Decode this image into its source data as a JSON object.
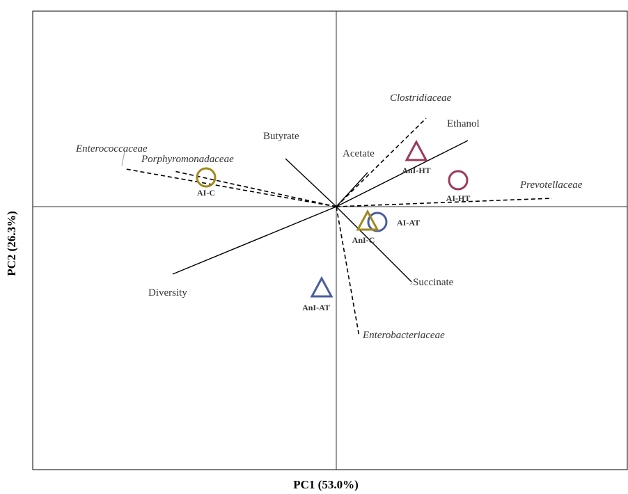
{
  "chart_data": {
    "type": "scatter",
    "subtype": "pca-biplot",
    "xlabel": "PC1 (53.0%)",
    "ylabel": "PC2 (26.3%)",
    "xlim": [
      -1.0,
      1.0
    ],
    "ylim": [
      -1.0,
      1.0
    ],
    "grid": false,
    "legend": "none",
    "samples": [
      {
        "label": "AI-C",
        "shape": "circle",
        "color": "#a08a1e",
        "x": -0.935,
        "y": 0.21
      },
      {
        "label": "AI-HT",
        "shape": "circle",
        "color": "#9a3a5e",
        "x": 0.875,
        "y": 0.19
      },
      {
        "label": "AI-AT",
        "shape": "circle",
        "color": "#4a5e9e",
        "x": 0.295,
        "y": -0.11
      },
      {
        "label": "AnI-C",
        "shape": "triangle",
        "color": "#a08a1e",
        "x": 0.225,
        "y": -0.11
      },
      {
        "label": "AnI-HT",
        "shape": "triangle",
        "color": "#9a3a5e",
        "x": 0.575,
        "y": 0.39
      },
      {
        "label": "AnI-AT",
        "shape": "triangle",
        "color": "#4a5e9e",
        "x": -0.105,
        "y": -0.59
      }
    ],
    "vectors": [
      {
        "label": "Ethanol",
        "style": "solid",
        "x": 0.945,
        "y": 0.475
      },
      {
        "label": "Butyrate",
        "style": "solid",
        "x": -0.365,
        "y": 0.345
      },
      {
        "label": "Acetate",
        "style": "solid",
        "x": 0.225,
        "y": 0.245
      },
      {
        "label": "Succinate",
        "style": "solid",
        "x": 0.54,
        "y": -0.54
      },
      {
        "label": "Diversity",
        "style": "solid",
        "x": -1.175,
        "y": -0.485
      },
      {
        "label": "Clostridiaceae",
        "style": "dashed",
        "x": 0.645,
        "y": 0.635
      },
      {
        "label": "Enterococcaceae",
        "style": "dashed",
        "x": -1.51,
        "y": 0.27
      },
      {
        "label": "Porphyromonadaceae",
        "style": "dashed",
        "x": -1.165,
        "y": 0.255
      },
      {
        "label": "Prevotellaceae",
        "style": "dashed",
        "x": 1.55,
        "y": 0.06
      },
      {
        "label": "Enterobacteriaceae",
        "style": "dashed",
        "x": 0.165,
        "y": -0.935
      }
    ]
  }
}
